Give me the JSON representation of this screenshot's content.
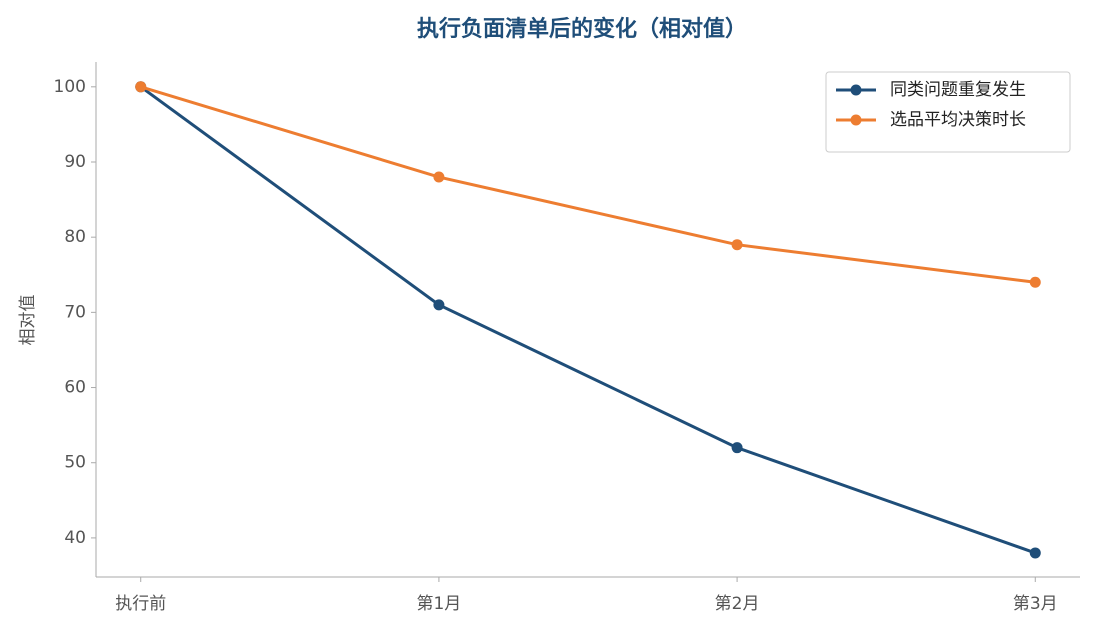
{
  "chart_data": {
    "type": "line",
    "title": "执行负面清单后的变化（相对值）",
    "y_label": "相对值",
    "categories": [
      "执行前",
      "第1月",
      "第2月",
      "第3月"
    ],
    "series": [
      {
        "name": "同类问题重复发生",
        "color": "#1f4e79",
        "values": [
          100,
          71,
          52,
          38
        ]
      },
      {
        "name": "选品平均决策时长",
        "color": "#ed7d31",
        "values": [
          100,
          88,
          79,
          74
        ]
      }
    ],
    "ylim": [
      34.8,
      103.3
    ],
    "yticks": [
      40,
      50,
      60,
      70,
      80,
      90,
      100
    ],
    "grid": false,
    "legend": "upper right"
  }
}
